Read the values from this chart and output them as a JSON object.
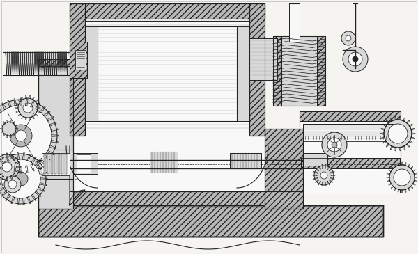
{
  "figsize": [
    6.0,
    3.65
  ],
  "dpi": 100,
  "bg": "#f5f4f1",
  "lc": "#222222",
  "hatch_fc": "#b8b8b8",
  "light_gray": "#d8d8d8",
  "mid_gray": "#aaaaaa",
  "white": "#f8f8f8"
}
